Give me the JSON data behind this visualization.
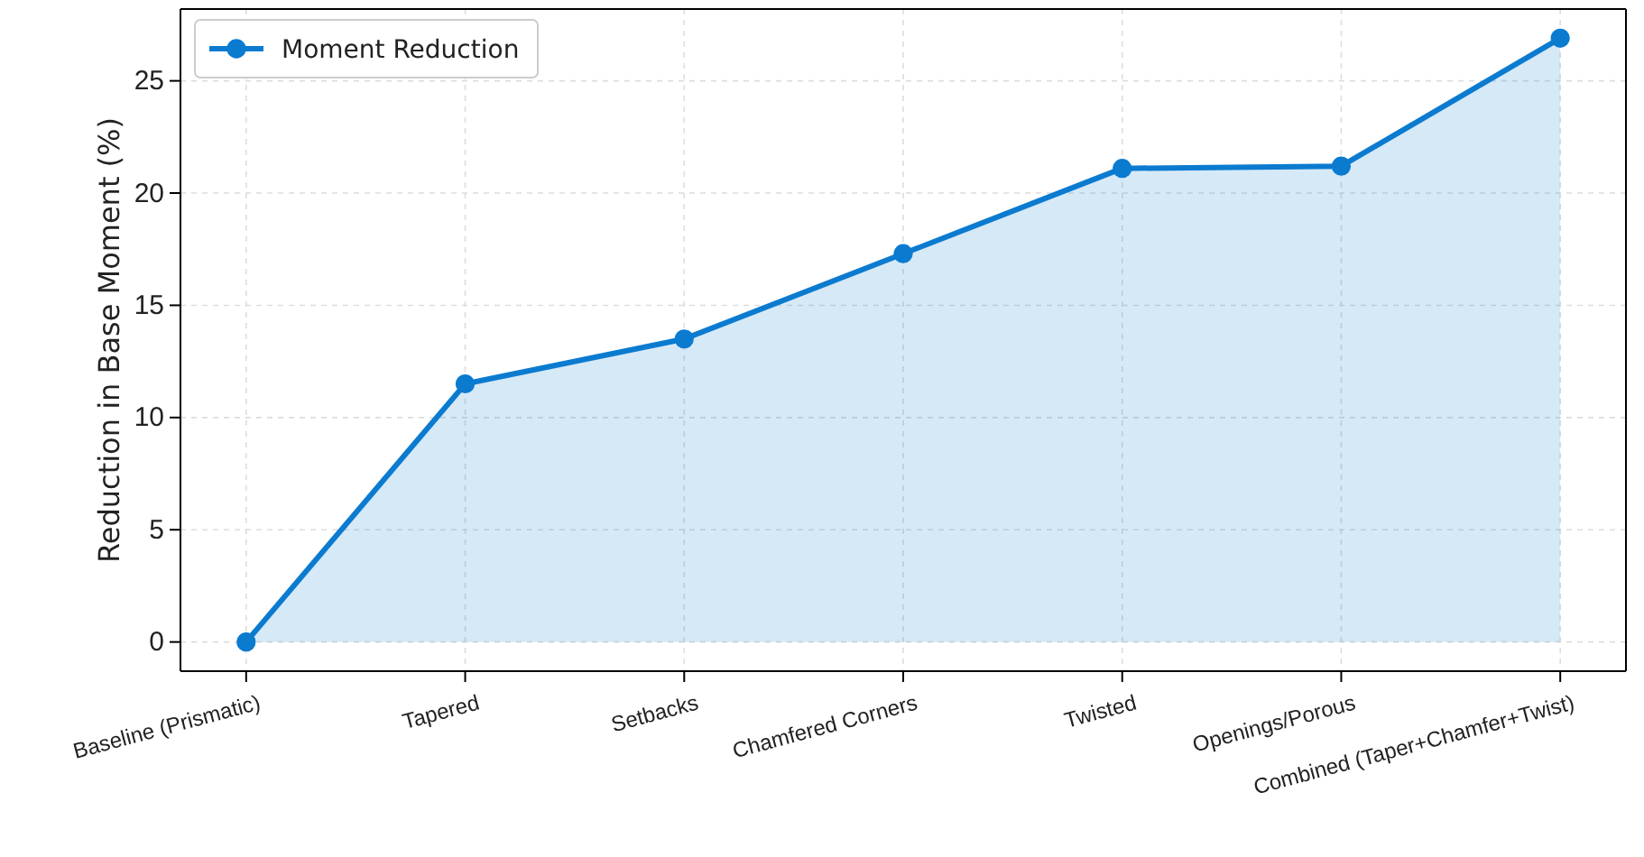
{
  "chart_data": {
    "type": "area",
    "ylabel": "Reduction in Base Moment (%)",
    "categories": [
      "Baseline (Prismatic)",
      "Tapered",
      "Setbacks",
      "Chamfered Corners",
      "Twisted",
      "Openings/Porous",
      "Combined (Taper+Chamfer+Twist)"
    ],
    "series": [
      {
        "name": "Moment Reduction",
        "color": "#0b7bd0",
        "values": [
          0,
          11.5,
          13.5,
          17.3,
          21.1,
          21.2,
          26.9
        ]
      }
    ],
    "ylim": [
      -1.3,
      28.2
    ],
    "yticks": [
      0,
      5,
      10,
      15,
      20,
      25
    ],
    "grid": true,
    "legend": "top left",
    "marker": "circle",
    "line_style": "solid"
  }
}
